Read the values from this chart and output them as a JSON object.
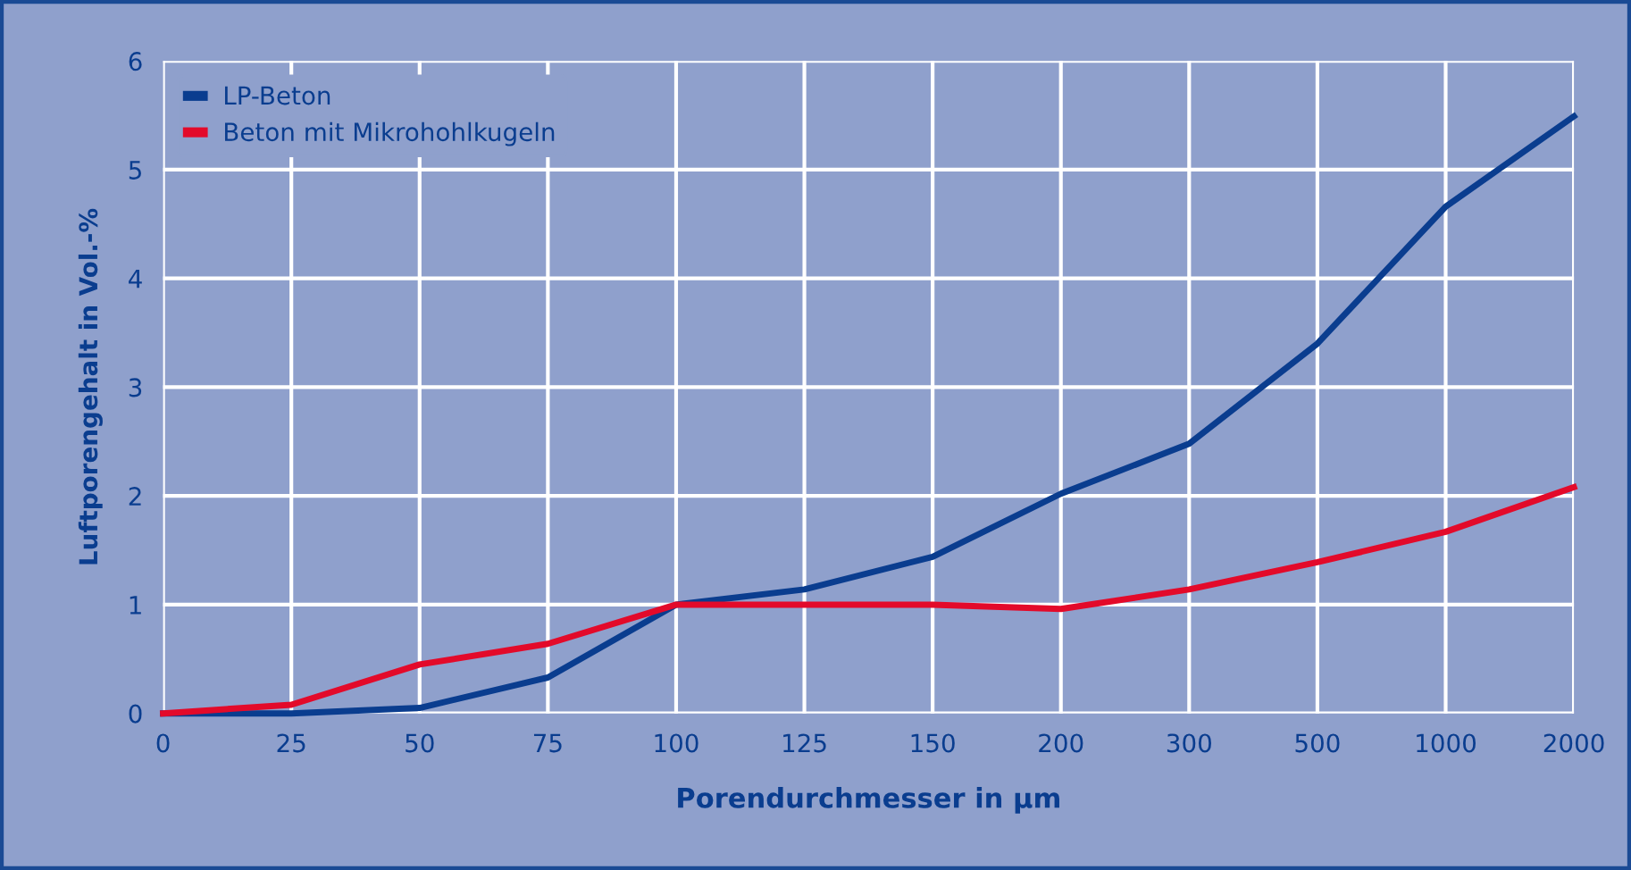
{
  "chart_data": {
    "type": "line",
    "xlabel": "Porendurchmesser in µm",
    "ylabel": "Luftporengehalt in Vol.-%",
    "categories": [
      "0",
      "25",
      "50",
      "75",
      "100",
      "125",
      "150",
      "200",
      "300",
      "500",
      "1000",
      "2000"
    ],
    "series": [
      {
        "name": "LP-Beton",
        "color": "#0a3d8f",
        "values": [
          0,
          0,
          0.05,
          0.33,
          1.0,
          1.14,
          1.44,
          2.02,
          2.48,
          3.4,
          4.66,
          5.49
        ]
      },
      {
        "name": "Beton mit Mikrohohlkugeln",
        "color": "#e30a2a",
        "values": [
          0,
          0.08,
          0.45,
          0.64,
          1.0,
          1.0,
          1.0,
          0.96,
          1.14,
          1.39,
          1.67,
          2.08
        ]
      }
    ],
    "ylim": [
      0,
      6
    ],
    "yticks": [
      0,
      1,
      2,
      3,
      4,
      5,
      6
    ],
    "grid": true,
    "legend": "top left",
    "marker": "none",
    "line_style": "solid"
  }
}
